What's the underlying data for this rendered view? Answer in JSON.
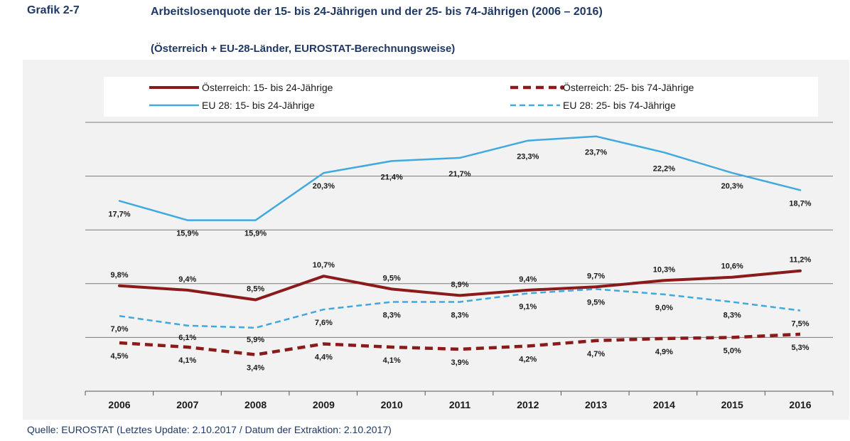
{
  "header": {
    "label": "Grafik 2-7",
    "title": "Arbeitslosenquote der 15- bis 24-Jährigen und der 25- bis 74-Jährigen (2006 – 2016)",
    "subtitle": "(Österreich + EU-28-Länder, EUROSTAT-Berechnungsweise)"
  },
  "source": "Quelle: EUROSTAT (Letztes Update: 2.10.2017 / Datum der Extraktion: 2.10.2017)",
  "chart_data": {
    "type": "line",
    "title": "Arbeitslosenquote der 15- bis 24-Jährigen und der 25- bis 74-Jährigen (2006 – 2016)",
    "subtitle": "(Österreich + EU-28-Länder, EUROSTAT-Berechnungsweise)",
    "xlabel": "",
    "ylabel": "",
    "x": [
      "2006",
      "2007",
      "2008",
      "2009",
      "2010",
      "2011",
      "2012",
      "2013",
      "2014",
      "2015",
      "2016"
    ],
    "ylim": [
      0,
      25
    ],
    "grid": "horizontal",
    "legend_position": "top",
    "series": [
      {
        "name": "Österreich: 15- bis 24-Jährige",
        "color": "#8b1a1a",
        "style": "solid-thick",
        "values": [
          9.8,
          9.4,
          8.5,
          10.7,
          9.5,
          8.9,
          9.4,
          9.7,
          10.3,
          10.6,
          11.2
        ],
        "labels": [
          "9,8%",
          "9,4%",
          "8,5%",
          "10,7%",
          "9,5%",
          "8,9%",
          "9,4%",
          "9,7%",
          "10,3%",
          "10,6%",
          "11,2%"
        ]
      },
      {
        "name": "Österreich: 25- bis 74-Jährige",
        "color": "#8b1a1a",
        "style": "dashed-thick",
        "values": [
          4.5,
          4.1,
          3.4,
          4.4,
          4.1,
          3.9,
          4.2,
          4.7,
          4.9,
          5.0,
          5.3
        ],
        "labels": [
          "4,5%",
          "4,1%",
          "3,4%",
          "4,4%",
          "4,1%",
          "3,9%",
          "4,2%",
          "4,7%",
          "4,9%",
          "5,0%",
          "5,3%"
        ]
      },
      {
        "name": "EU 28: 15- bis 24-Jährige",
        "color": "#3fa9e0",
        "style": "solid",
        "values": [
          17.7,
          15.9,
          15.9,
          20.3,
          21.4,
          21.7,
          23.3,
          23.7,
          22.2,
          20.3,
          18.7
        ],
        "labels": [
          "17,7%",
          "15,9%",
          "15,9%",
          "20,3%",
          "21,4%",
          "21,7%",
          "23,3%",
          "23,7%",
          "22,2%",
          "20,3%",
          "18,7%"
        ]
      },
      {
        "name": "EU 28: 25- bis 74-Jährige",
        "color": "#3fa9e0",
        "style": "dashed",
        "values": [
          7.0,
          6.1,
          5.9,
          7.6,
          8.3,
          8.3,
          9.1,
          9.5,
          9.0,
          8.3,
          7.5
        ],
        "labels": [
          "7,0%",
          "6,1%",
          "5,9%",
          "7,6%",
          "8,3%",
          "8,3%",
          "9,1%",
          "9,5%",
          "9,0%",
          "8,3%",
          "7,5%"
        ]
      }
    ]
  }
}
